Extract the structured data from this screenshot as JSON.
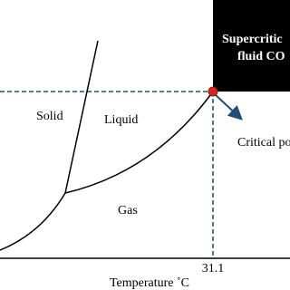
{
  "regions": {
    "box_line1": "Supercritic",
    "box_line2": "fluid CO",
    "solid": "Solid",
    "liquid": "Liquid",
    "gas": "Gas"
  },
  "annotation": "Critical po",
  "x_axis": {
    "tick": "31.1",
    "label": "Temperature ˚C"
  }
}
